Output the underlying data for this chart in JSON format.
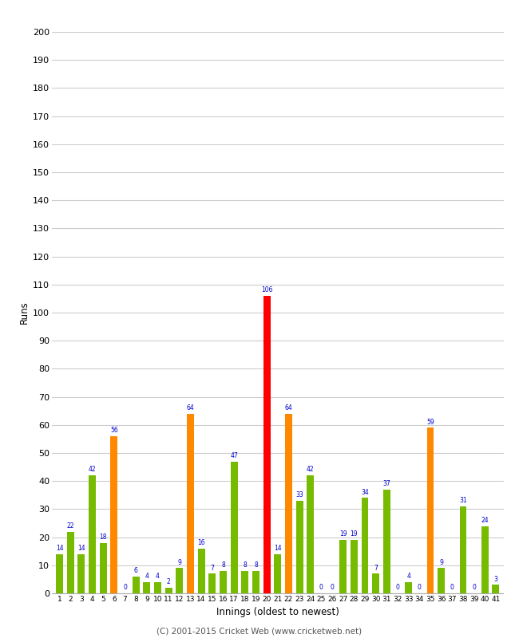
{
  "innings": [
    1,
    2,
    3,
    4,
    5,
    6,
    7,
    8,
    9,
    10,
    11,
    12,
    13,
    14,
    15,
    16,
    17,
    18,
    19,
    20,
    21,
    22,
    23,
    24,
    25,
    26,
    27,
    28,
    29,
    30,
    31,
    32,
    33,
    34,
    35,
    36,
    37,
    38,
    39,
    40,
    41
  ],
  "values": [
    14,
    22,
    14,
    42,
    18,
    56,
    0,
    6,
    4,
    4,
    2,
    9,
    64,
    16,
    7,
    8,
    47,
    8,
    8,
    106,
    14,
    64,
    33,
    42,
    0,
    0,
    19,
    19,
    34,
    7,
    37,
    0,
    4,
    0,
    59,
    9,
    0,
    31,
    0,
    24,
    3
  ],
  "colors": [
    "#77bb00",
    "#77bb00",
    "#77bb00",
    "#77bb00",
    "#77bb00",
    "#ff8800",
    "#77bb00",
    "#77bb00",
    "#77bb00",
    "#77bb00",
    "#77bb00",
    "#77bb00",
    "#ff8800",
    "#77bb00",
    "#77bb00",
    "#77bb00",
    "#77bb00",
    "#77bb00",
    "#77bb00",
    "#ff0000",
    "#77bb00",
    "#ff8800",
    "#77bb00",
    "#77bb00",
    "#77bb00",
    "#77bb00",
    "#77bb00",
    "#77bb00",
    "#77bb00",
    "#77bb00",
    "#77bb00",
    "#77bb00",
    "#77bb00",
    "#77bb00",
    "#ff8800",
    "#77bb00",
    "#77bb00",
    "#77bb00",
    "#77bb00",
    "#77bb00",
    "#77bb00"
  ],
  "xlabel": "Innings (oldest to newest)",
  "ylabel": "Runs",
  "ylim": [
    0,
    200
  ],
  "yticks": [
    0,
    10,
    20,
    30,
    40,
    50,
    60,
    70,
    80,
    90,
    100,
    110,
    120,
    130,
    140,
    150,
    160,
    170,
    180,
    190,
    200
  ],
  "footer": "(C) 2001-2015 Cricket Web (www.cricketweb.net)",
  "label_color": "#0000cc",
  "bg_color": "#ffffff",
  "grid_color": "#cccccc"
}
